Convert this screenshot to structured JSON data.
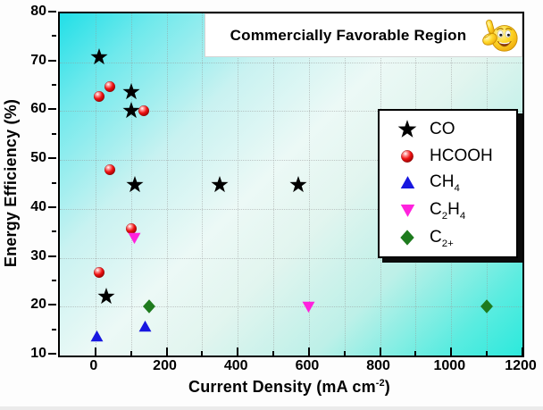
{
  "banner": {
    "text": "Commercially Favorable Region",
    "icon": "thumbs-up-smiley"
  },
  "chart_data": {
    "type": "scatter",
    "title": "",
    "ylabel": "Energy Efficiency (%)",
    "xlabel_parts": [
      {
        "t": "Current Density (mA cm",
        "s": "n"
      },
      {
        "t": "-2",
        "s": "sup"
      },
      {
        "t": ")",
        "s": "n"
      }
    ],
    "xlim": [
      -100,
      1200
    ],
    "ylim": [
      10,
      80
    ],
    "x_ticks": [
      0,
      200,
      400,
      600,
      800,
      1000,
      1200
    ],
    "x_minor_ticks": [
      100,
      300,
      500,
      700,
      900,
      1100
    ],
    "y_ticks": [
      10,
      20,
      30,
      40,
      50,
      60,
      70,
      80
    ],
    "y_minor_ticks": [
      15,
      25,
      35,
      45,
      55,
      65,
      75
    ],
    "grid": "dotted, vertical every 100 mA cm-2, horizontal every 10 %",
    "legend_position": "right-center inset, white box with black drop shadow",
    "series": [
      {
        "name": "CO",
        "marker": "star",
        "color": "#000000",
        "points": [
          [
            10,
            71
          ],
          [
            100,
            64
          ],
          [
            100,
            60
          ],
          [
            110,
            45
          ],
          [
            350,
            45
          ],
          [
            570,
            45
          ],
          [
            30,
            22
          ]
        ],
        "label_parts": [
          {
            "t": "CO",
            "s": "n"
          }
        ]
      },
      {
        "name": "HCOOH",
        "marker": "sphere",
        "color": "#ee1111",
        "points": [
          [
            10,
            63
          ],
          [
            40,
            65
          ],
          [
            135,
            60
          ],
          [
            40,
            48
          ],
          [
            100,
            36
          ],
          [
            10,
            27
          ]
        ],
        "label_parts": [
          {
            "t": "HCOOH",
            "s": "n"
          }
        ]
      },
      {
        "name": "CH4",
        "marker": "triangle-up",
        "color": "#1717e0",
        "points": [
          [
            5,
            14
          ],
          [
            140,
            16
          ]
        ],
        "label_parts": [
          {
            "t": "CH",
            "s": "n"
          },
          {
            "t": "4",
            "s": "sub"
          }
        ]
      },
      {
        "name": "C2H4",
        "marker": "triangle-down",
        "color": "#ff22dd",
        "points": [
          [
            110,
            34
          ],
          [
            600,
            20
          ]
        ],
        "label_parts": [
          {
            "t": "C",
            "s": "n"
          },
          {
            "t": "2",
            "s": "sub"
          },
          {
            "t": "H",
            "s": "n"
          },
          {
            "t": "4",
            "s": "sub"
          }
        ]
      },
      {
        "name": "C2+",
        "marker": "diamond",
        "color": "#1e7b1e",
        "points": [
          [
            150,
            20
          ],
          [
            1100,
            20
          ]
        ],
        "label_parts": [
          {
            "t": "C",
            "s": "n"
          },
          {
            "t": "2+",
            "s": "sub"
          }
        ]
      }
    ],
    "colors": {
      "plot_gradient": [
        "#21dfe7",
        "#ecf9f6",
        "#2ce9dc"
      ],
      "legend_shadow": "#0b0b0b",
      "frame": "#000000"
    }
  }
}
